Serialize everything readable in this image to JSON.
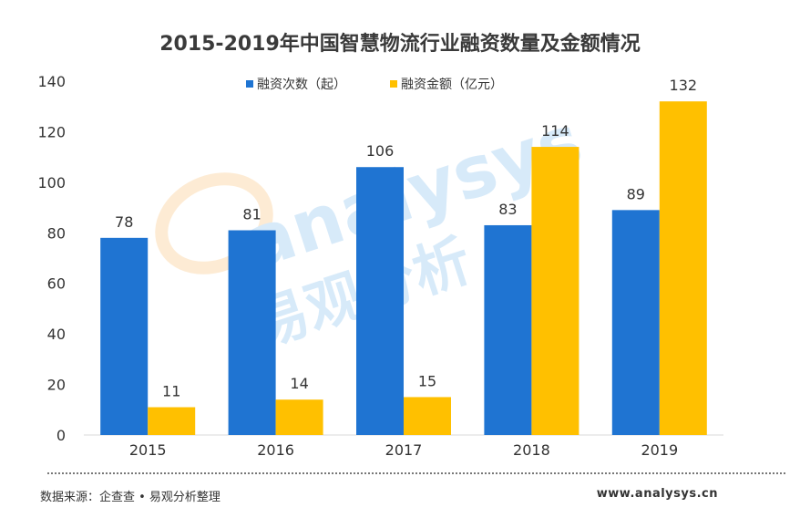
{
  "title": "2015-2019年中国智慧物流行业融资数量及金额情况",
  "chart_data": {
    "type": "bar",
    "title": "2015-2019年中国智慧物流行业融资数量及金额情况",
    "categories": [
      "2015",
      "2016",
      "2017",
      "2018",
      "2019"
    ],
    "series": [
      {
        "name": "融资次数（起）",
        "color": "#1f74d2",
        "values": [
          78,
          81,
          106,
          83,
          89
        ]
      },
      {
        "name": "融资金额（亿元）",
        "color": "#ffc000",
        "values": [
          11,
          14,
          15,
          114,
          132
        ]
      }
    ],
    "ylim": [
      0,
      140
    ],
    "yticks": [
      "0",
      "20",
      "40",
      "60",
      "80",
      "100",
      "120",
      "140"
    ],
    "grid": false,
    "legend_position": "top-center",
    "xlabel": "",
    "ylabel": ""
  },
  "watermark": {
    "brand": "analysys",
    "cn": "易观分析"
  },
  "footer": {
    "source": "数据来源：企查查 • 易观分析整理",
    "site": "www.analysys.cn"
  }
}
